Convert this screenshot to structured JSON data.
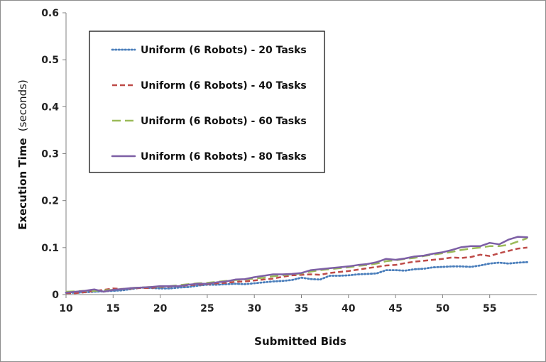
{
  "chart_data": {
    "type": "line",
    "xlabel": "Submitted Bids",
    "ylabel": "Execution Time",
    "ylabel_unit": "(seconds)",
    "xlim": [
      10,
      60
    ],
    "ylim": [
      0,
      0.6
    ],
    "xticks": [
      "10",
      "15",
      "20",
      "25",
      "30",
      "35",
      "40",
      "45",
      "50",
      "55"
    ],
    "yticks": [
      "0",
      "0.1",
      "0.2",
      "0.3",
      "0.4",
      "0.5",
      "0.6"
    ],
    "grid": false,
    "legend_position": "top-left",
    "x": [
      10,
      11,
      12,
      13,
      14,
      15,
      16,
      17,
      18,
      19,
      20,
      21,
      22,
      23,
      24,
      25,
      26,
      27,
      28,
      29,
      30,
      31,
      32,
      33,
      34,
      35,
      36,
      37,
      38,
      39,
      40,
      41,
      42,
      43,
      44,
      45,
      46,
      47,
      48,
      49,
      50,
      51,
      52,
      53,
      54,
      55,
      56,
      57,
      58,
      59
    ],
    "series": [
      {
        "name": "Uniform (6 Robots) - 20 Tasks",
        "color": "#4a7ebb",
        "dash": "dotted",
        "values": [
          0.004,
          0.004,
          0.005,
          0.006,
          0.007,
          0.008,
          0.009,
          0.012,
          0.015,
          0.014,
          0.013,
          0.013,
          0.015,
          0.016,
          0.019,
          0.021,
          0.021,
          0.022,
          0.023,
          0.022,
          0.024,
          0.026,
          0.028,
          0.029,
          0.031,
          0.036,
          0.033,
          0.032,
          0.04,
          0.04,
          0.041,
          0.043,
          0.044,
          0.045,
          0.052,
          0.052,
          0.051,
          0.054,
          0.055,
          0.058,
          0.059,
          0.06,
          0.06,
          0.059,
          0.062,
          0.066,
          0.068,
          0.066,
          0.068,
          0.069
        ]
      },
      {
        "name": "Uniform (6 Robots) - 40 Tasks",
        "color": "#be4b48",
        "dash": "dashed",
        "values": [
          0.003,
          0.003,
          0.005,
          0.008,
          0.01,
          0.013,
          0.012,
          0.013,
          0.014,
          0.014,
          0.016,
          0.017,
          0.018,
          0.02,
          0.021,
          0.022,
          0.024,
          0.025,
          0.027,
          0.028,
          0.03,
          0.032,
          0.034,
          0.038,
          0.041,
          0.042,
          0.043,
          0.042,
          0.046,
          0.048,
          0.05,
          0.053,
          0.056,
          0.059,
          0.062,
          0.063,
          0.067,
          0.07,
          0.072,
          0.074,
          0.076,
          0.079,
          0.078,
          0.08,
          0.085,
          0.082,
          0.088,
          0.093,
          0.098,
          0.1
        ]
      },
      {
        "name": "Uniform (6 Robots) - 60 Tasks",
        "color": "#9bbb59",
        "dash": "long-dash",
        "values": [
          0.006,
          0.007,
          0.008,
          0.008,
          0.009,
          0.01,
          0.012,
          0.014,
          0.015,
          0.016,
          0.017,
          0.018,
          0.02,
          0.022,
          0.024,
          0.025,
          0.027,
          0.029,
          0.031,
          0.032,
          0.034,
          0.036,
          0.039,
          0.041,
          0.043,
          0.045,
          0.049,
          0.052,
          0.054,
          0.056,
          0.058,
          0.061,
          0.063,
          0.066,
          0.071,
          0.073,
          0.076,
          0.078,
          0.082,
          0.085,
          0.088,
          0.091,
          0.095,
          0.098,
          0.1,
          0.103,
          0.103,
          0.106,
          0.113,
          0.12
        ]
      },
      {
        "name": "Uniform (6 Robots) - 80 Tasks",
        "color": "#7d5fa5",
        "dash": "solid",
        "values": [
          0.004,
          0.006,
          0.008,
          0.011,
          0.006,
          0.01,
          0.012,
          0.014,
          0.015,
          0.016,
          0.018,
          0.018,
          0.018,
          0.021,
          0.023,
          0.023,
          0.026,
          0.028,
          0.032,
          0.033,
          0.037,
          0.04,
          0.043,
          0.043,
          0.044,
          0.046,
          0.052,
          0.054,
          0.056,
          0.058,
          0.06,
          0.063,
          0.065,
          0.069,
          0.076,
          0.074,
          0.077,
          0.081,
          0.083,
          0.087,
          0.09,
          0.095,
          0.101,
          0.103,
          0.103,
          0.11,
          0.107,
          0.117,
          0.123,
          0.122
        ]
      }
    ]
  }
}
